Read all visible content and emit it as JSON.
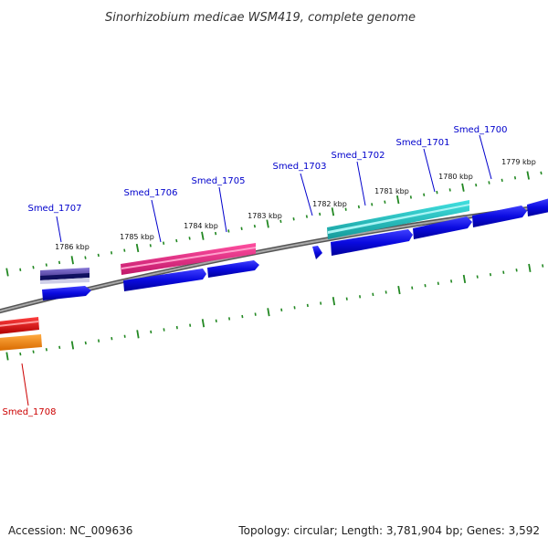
{
  "genome_title": "Sinorhizobium medicae WSM419, complete genome",
  "accession": "Accession: NC_009636",
  "stats": "Topology: circular; Length: 3,781,904 bp; Genes: 3,592",
  "kbp_labels": [
    "1786 kbp",
    "1785 kbp",
    "1784 kbp",
    "1783 kbp",
    "1782 kbp",
    "1781 kbp",
    "1780 kbp",
    "1779 kbp"
  ],
  "genes": [
    {
      "name": "Smed_1707",
      "color": "#0000cc"
    },
    {
      "name": "Smed_1706",
      "color": "#0000cc"
    },
    {
      "name": "Smed_1705",
      "color": "#0000cc"
    },
    {
      "name": "Smed_1703",
      "color": "#0000cc"
    },
    {
      "name": "Smed_1702",
      "color": "#0000cc"
    },
    {
      "name": "Smed_1701",
      "color": "#0000cc"
    },
    {
      "name": "Smed_1700",
      "color": "#0000cc"
    },
    {
      "name": "Smed_1708",
      "color": "#cc0000"
    }
  ],
  "colors": {
    "cds_blue": "#1010e0",
    "feature_purple": "#7060c0",
    "feature_magenta": "#e8388a",
    "feature_cyan": "#30c8c8",
    "feature_red": "#ee1111",
    "feature_orange": "#ff8c10",
    "backbone": "#808080",
    "tick_green": "#228822"
  }
}
